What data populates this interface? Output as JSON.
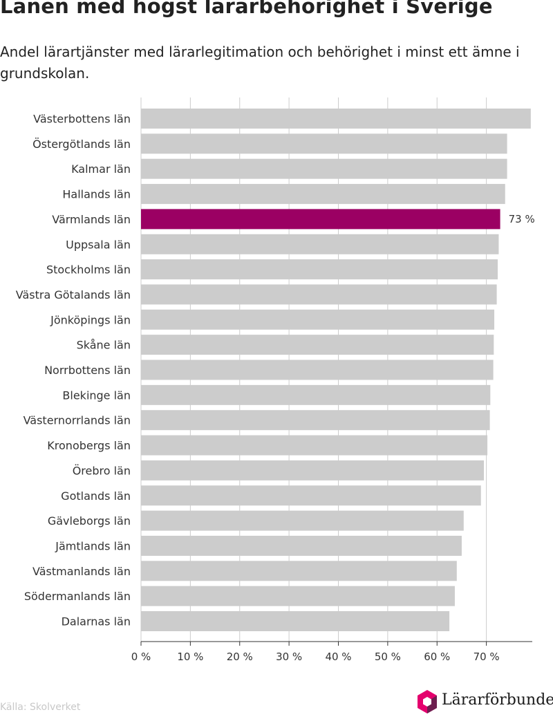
{
  "colors": {
    "bar": "#cccccc",
    "highlight": "#9b0063",
    "grid": "#cccccc",
    "axis": "#333333",
    "text": "#333333",
    "logo_pink": "#e4006d",
    "logo_purple": "#6d1e4f"
  },
  "chart_data": {
    "type": "bar",
    "orientation": "horizontal",
    "title": "Länen med högst lärarbehörighet i Sverige",
    "subtitle": "Andel lärartjänster med lärarlegitimation och behörighet i minst ett ämne i grundskolan.",
    "categories": [
      "Västerbottens län",
      "Östergötlands län",
      "Kalmar län",
      "Hallands län",
      "Värmlands län",
      "Uppsala län",
      "Stockholms län",
      "Västra Götalands län",
      "Jönköpings län",
      "Skåne län",
      "Norrbottens län",
      "Blekinge län",
      "Västernorrlands län",
      "Kronobergs län",
      "Örebro län",
      "Gotlands län",
      "Gävleborgs län",
      "Jämtlands län",
      "Västmanlands län",
      "Södermanlands län",
      "Dalarnas län"
    ],
    "values": [
      79,
      74.2,
      74.2,
      73.8,
      72.8,
      72.5,
      72.3,
      72.1,
      71.6,
      71.5,
      71.4,
      70.8,
      70.7,
      70.2,
      69.5,
      68.9,
      65.4,
      65,
      64,
      63.6,
      62.5
    ],
    "highlight_index": 4,
    "highlight_label": "73 %",
    "xticks": [
      "0 %",
      "10 %",
      "20 %",
      "30 %",
      "40 %",
      "50 %",
      "60 %",
      "70 %"
    ],
    "xtick_values": [
      0,
      10,
      20,
      30,
      40,
      50,
      60,
      70
    ],
    "xlim": [
      0,
      79.3
    ],
    "grid": true
  },
  "footer": {
    "source": "Källa: Skolverket",
    "logo_icon": "hexagon-logo-icon",
    "logo_text": "Lärarförbundet"
  }
}
